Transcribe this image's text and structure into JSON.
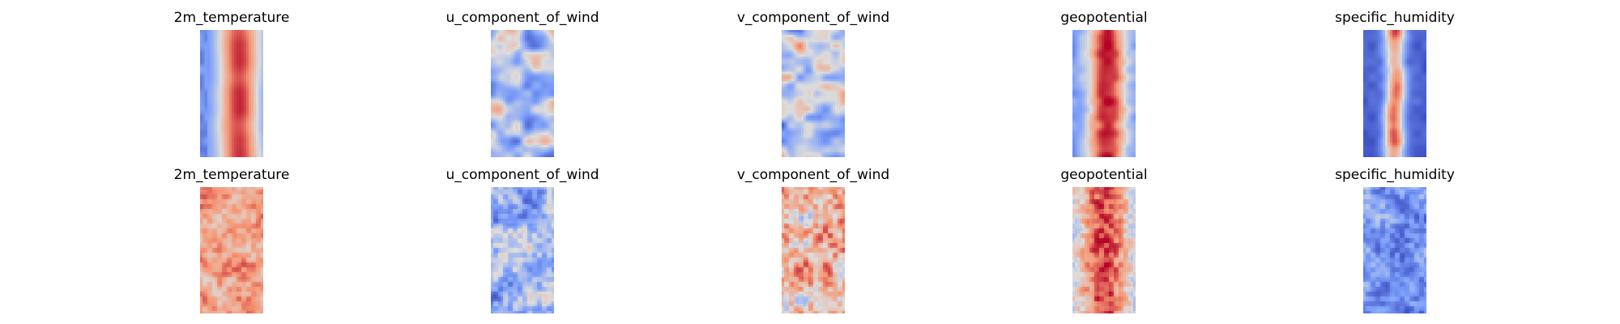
{
  "chart_data": {
    "type": "heatmap",
    "colormap": "coolwarm",
    "colors": {
      "low": "#3b4cc0",
      "mid": "#dddddd",
      "high": "#b40426"
    },
    "axes_visible": false,
    "grid": false,
    "legend": "none",
    "rows": [
      {
        "panels": [
          {
            "title": "2m_temperature",
            "pattern": "temperature_smooth"
          },
          {
            "title": "u_component_of_wind",
            "pattern": "wind_smooth"
          },
          {
            "title": "v_component_of_wind",
            "pattern": "wind_smooth_light"
          },
          {
            "title": "geopotential",
            "pattern": "geopotential_smooth"
          },
          {
            "title": "specific_humidity",
            "pattern": "humidity_smooth"
          }
        ]
      },
      {
        "panels": [
          {
            "title": "2m_temperature",
            "pattern": "temperature_noisy"
          },
          {
            "title": "u_component_of_wind",
            "pattern": "wind_noisy"
          },
          {
            "title": "v_component_of_wind",
            "pattern": "wind_noisy_warm"
          },
          {
            "title": "geopotential",
            "pattern": "geopotential_noisy"
          },
          {
            "title": "specific_humidity",
            "pattern": "humidity_noisy"
          }
        ]
      }
    ]
  }
}
